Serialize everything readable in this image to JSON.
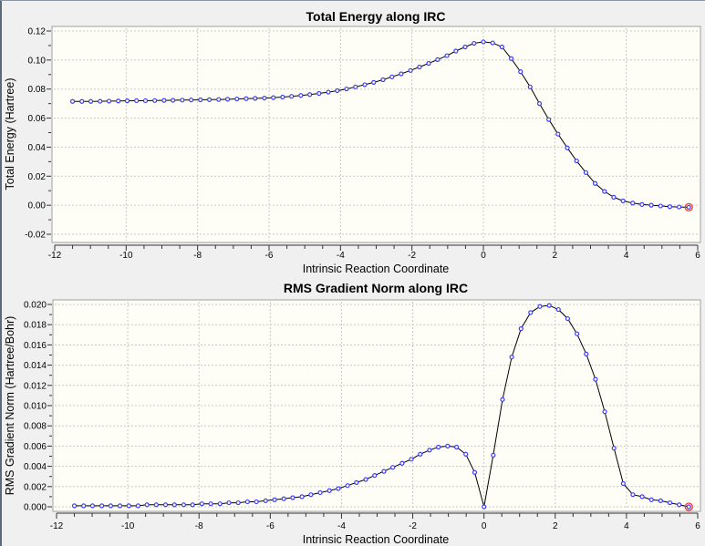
{
  "chart_data": [
    {
      "type": "line",
      "title": "Total Energy along IRC",
      "xlabel": "Intrinsic Reaction Coordinate",
      "ylabel": "Total Energy (Hartree)",
      "xlim": [
        -12,
        6
      ],
      "ylim": [
        -0.02,
        0.12
      ],
      "xticks": [
        "-12",
        "-10",
        "-8",
        "-6",
        "-4",
        "-2",
        "0",
        "2",
        "4",
        "6"
      ],
      "yticks": [
        "0.12",
        "0.10",
        "0.08",
        "0.06",
        "0.04",
        "0.02",
        "0.00",
        "-0.02"
      ],
      "grid": true,
      "line_color": "#000000",
      "marker_color": "#3c3cff",
      "highlight_color": "#ff3030",
      "x": [
        -11.5,
        -11.24,
        -10.99,
        -10.73,
        -10.48,
        -10.22,
        -9.97,
        -9.71,
        -9.46,
        -9.2,
        -8.94,
        -8.69,
        -8.43,
        -8.18,
        -7.92,
        -7.67,
        -7.41,
        -7.16,
        -6.9,
        -6.64,
        -6.39,
        -6.13,
        -5.88,
        -5.62,
        -5.37,
        -5.11,
        -4.86,
        -4.6,
        -4.34,
        -4.09,
        -3.83,
        -3.58,
        -3.32,
        -3.07,
        -2.81,
        -2.56,
        -2.3,
        -2.04,
        -1.79,
        -1.53,
        -1.28,
        -1.02,
        -0.77,
        -0.51,
        -0.26,
        0.0,
        0.26,
        0.52,
        0.78,
        1.04,
        1.31,
        1.57,
        1.83,
        2.09,
        2.35,
        2.61,
        2.87,
        3.13,
        3.39,
        3.65,
        3.91,
        4.18,
        4.44,
        4.7,
        4.96,
        5.22,
        5.48,
        5.75
      ],
      "y": [
        0.0715,
        0.0715,
        0.0715,
        0.0716,
        0.0717,
        0.0718,
        0.0719,
        0.072,
        0.072,
        0.0721,
        0.0722,
        0.0723,
        0.0724,
        0.0725,
        0.0726,
        0.0727,
        0.0728,
        0.073,
        0.0732,
        0.0734,
        0.0736,
        0.0738,
        0.0741,
        0.0745,
        0.075,
        0.0756,
        0.0762,
        0.077,
        0.0779,
        0.0789,
        0.0801,
        0.0815,
        0.083,
        0.0846,
        0.0864,
        0.0884,
        0.0905,
        0.0928,
        0.0952,
        0.0977,
        0.1003,
        0.103,
        0.1062,
        0.109,
        0.1115,
        0.1125,
        0.1118,
        0.109,
        0.101,
        0.092,
        0.0815,
        0.07,
        0.059,
        0.049,
        0.0395,
        0.0305,
        0.0225,
        0.015,
        0.0095,
        0.0055,
        0.003,
        0.0015,
        0.0005,
        0.0,
        -0.0005,
        -0.001,
        -0.0012,
        -0.0014
      ]
    },
    {
      "type": "line",
      "title": "RMS Gradient Norm along IRC",
      "xlabel": "Intrinsic Reaction Coordinate",
      "ylabel": "RMS Gradient Norm (Hartree/Bohr)",
      "xlim": [
        -12,
        6
      ],
      "ylim": [
        0,
        0.02
      ],
      "xticks": [
        "-12",
        "-10",
        "-8",
        "-6",
        "-4",
        "-2",
        "0",
        "2",
        "4",
        "6"
      ],
      "yticks": [
        "0.020",
        "0.018",
        "0.016",
        "0.014",
        "0.012",
        "0.010",
        "0.008",
        "0.006",
        "0.004",
        "0.002",
        "0.000"
      ],
      "grid": true,
      "line_color": "#000000",
      "marker_color": "#3c3cff",
      "highlight_color": "#ff3030",
      "x": [
        -11.5,
        -11.24,
        -10.99,
        -10.73,
        -10.48,
        -10.22,
        -9.97,
        -9.71,
        -9.46,
        -9.2,
        -8.94,
        -8.69,
        -8.43,
        -8.18,
        -7.92,
        -7.67,
        -7.41,
        -7.16,
        -6.9,
        -6.64,
        -6.39,
        -6.13,
        -5.88,
        -5.62,
        -5.37,
        -5.11,
        -4.86,
        -4.6,
        -4.34,
        -4.09,
        -3.83,
        -3.58,
        -3.32,
        -3.07,
        -2.81,
        -2.56,
        -2.3,
        -2.04,
        -1.79,
        -1.53,
        -1.28,
        -1.02,
        -0.77,
        -0.51,
        -0.26,
        0.0,
        0.26,
        0.52,
        0.78,
        1.04,
        1.31,
        1.57,
        1.83,
        2.09,
        2.35,
        2.61,
        2.87,
        3.13,
        3.39,
        3.65,
        3.91,
        4.18,
        4.44,
        4.7,
        4.96,
        5.22,
        5.48,
        5.75
      ],
      "y": [
        0.0001,
        0.0001,
        0.0001,
        0.0001,
        0.0001,
        0.0001,
        0.0001,
        0.0001,
        0.0002,
        0.0002,
        0.0002,
        0.0002,
        0.0002,
        0.0002,
        0.0003,
        0.0003,
        0.0003,
        0.0004,
        0.0004,
        0.0005,
        0.0005,
        0.0006,
        0.0007,
        0.0008,
        0.0009,
        0.001,
        0.0012,
        0.0014,
        0.0016,
        0.0018,
        0.0021,
        0.0024,
        0.0027,
        0.0031,
        0.0035,
        0.0039,
        0.0043,
        0.0047,
        0.0052,
        0.0056,
        0.0059,
        0.006,
        0.0059,
        0.0052,
        0.0034,
        0.0,
        0.0051,
        0.0106,
        0.0148,
        0.0176,
        0.0192,
        0.0198,
        0.0199,
        0.0195,
        0.0186,
        0.0171,
        0.0151,
        0.0126,
        0.0094,
        0.0058,
        0.0023,
        0.0012,
        0.001,
        0.0007,
        0.0006,
        0.0004,
        0.0002,
        0.0
      ]
    }
  ]
}
